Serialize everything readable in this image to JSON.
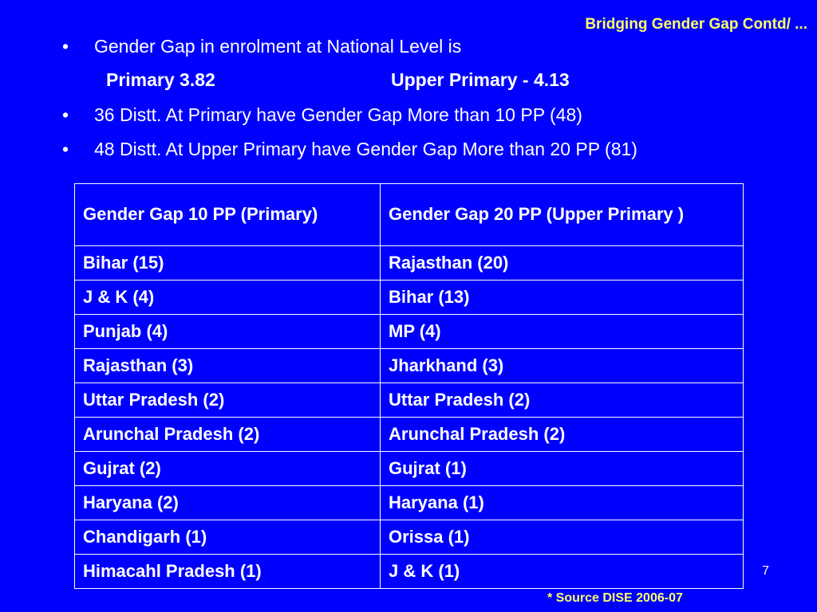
{
  "slide": {
    "title": "Bridging Gender Gap Contd/ ...",
    "page_number": "7",
    "source": "* Source DISE 2006-07"
  },
  "bullets": {
    "b1": "Gender Gap in enrolment at National Level is",
    "primary": "Primary  3.82",
    "upper_primary": "Upper Primary  - 4.13",
    "b2": "36 Distt. At Primary have Gender Gap More than 10 PP (48)",
    "b3": "48 Distt. At Upper Primary have Gender Gap More than 20 PP (81)",
    "marker": "•"
  },
  "table": {
    "headers": [
      "Gender Gap 10 PP (Primary)",
      "Gender Gap 20 PP (Upper Primary )"
    ],
    "rows": [
      [
        "Bihar (15)",
        "Rajasthan (20)"
      ],
      [
        "J & K (4)",
        "Bihar (13)"
      ],
      [
        "Punjab (4)",
        "MP (4)"
      ],
      [
        "Rajasthan (3)",
        "Jharkhand (3)"
      ],
      [
        "Uttar Pradesh (2)",
        "Uttar Pradesh (2)"
      ],
      [
        "Arunchal Pradesh (2)",
        "Arunchal Pradesh (2)"
      ],
      [
        "Gujrat (2)",
        "Gujrat (1)"
      ],
      [
        "Haryana (2)",
        "Haryana (1)"
      ],
      [
        "Chandigarh  (1)",
        "Orissa (1)"
      ],
      [
        "Himacahl Pradesh (1)",
        "J & K (1)"
      ]
    ]
  },
  "colors": {
    "background": "#0000ff",
    "title": "#ffff66",
    "text": "#ffffff"
  }
}
